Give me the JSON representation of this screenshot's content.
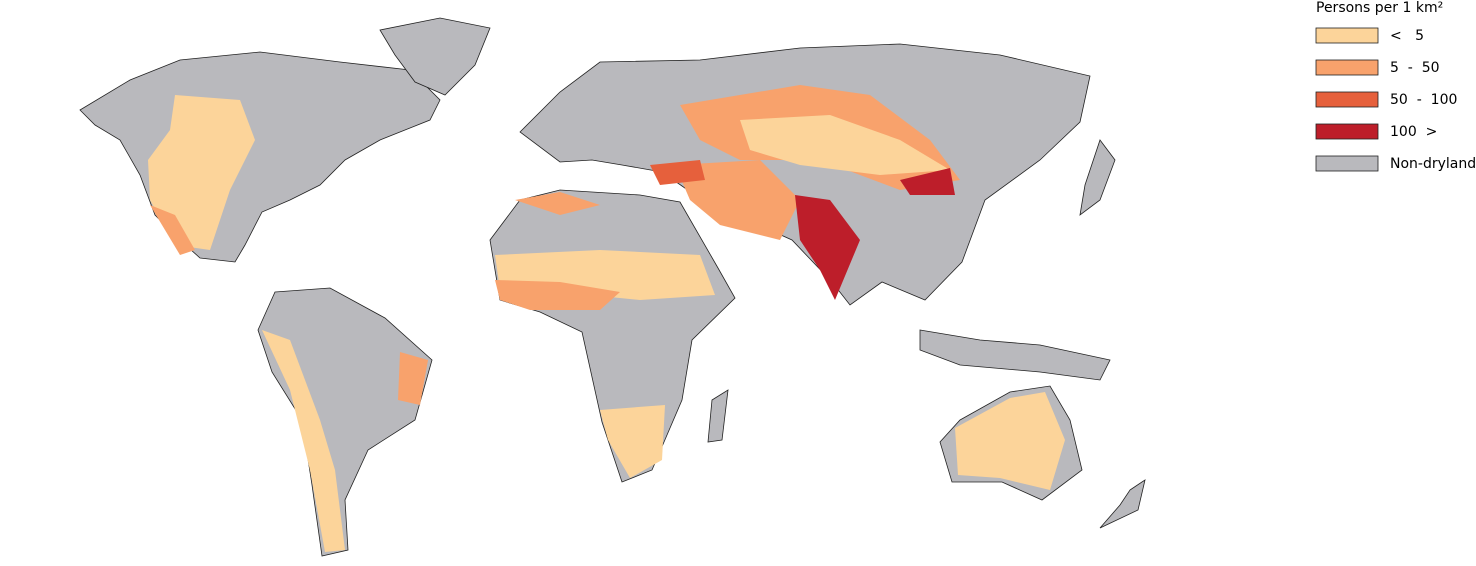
{
  "legend": {
    "title": "Persons per 1 km²",
    "items": [
      {
        "label": "<   5",
        "color": "#fcd49a"
      },
      {
        "label": "5  -  50",
        "color": "#f8a26c"
      },
      {
        "label": "50  -  100",
        "color": "#e6603c"
      },
      {
        "label": "100  >",
        "color": "#bd1e2a"
      },
      {
        "label": "Non-dryland",
        "color": "#b9b9bd"
      }
    ]
  }
}
